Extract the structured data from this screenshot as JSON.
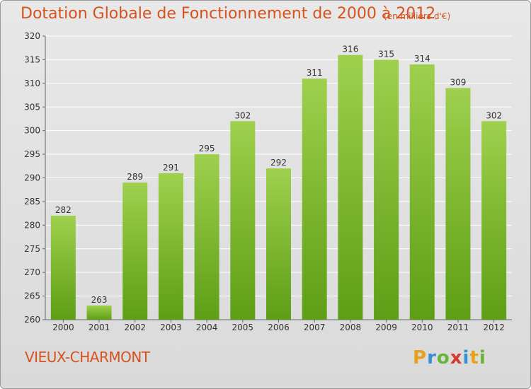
{
  "title": "Dotation Globale de Fonctionnement de 2000 à 2012",
  "subtitle": "(en milliers d'€)",
  "commune": "VIEUX-CHARMONT",
  "logo": {
    "letters": [
      "P",
      "r",
      "o",
      "x",
      "i",
      "t",
      "i"
    ],
    "colors": [
      "#e8a11c",
      "#3a8fd0",
      "#6ab33a",
      "#d63a2a",
      "#3a8fd0",
      "#e8a11c",
      "#6ab33a"
    ]
  },
  "colors": {
    "bar_light": "#9ed04e",
    "bar_dark": "#5e9e16",
    "title": "#d6531f",
    "grid": "#ffffff"
  },
  "chart_data": {
    "type": "bar",
    "categories": [
      "2000",
      "2001",
      "2002",
      "2003",
      "2004",
      "2005",
      "2006",
      "2007",
      "2008",
      "2009",
      "2010",
      "2011",
      "2012"
    ],
    "values": [
      282,
      263,
      289,
      291,
      295,
      302,
      292,
      311,
      316,
      315,
      314,
      309,
      302
    ],
    "ylim": [
      260,
      320
    ],
    "yticks": [
      260,
      265,
      270,
      275,
      280,
      285,
      290,
      295,
      300,
      305,
      310,
      315,
      320
    ],
    "grid": true
  }
}
